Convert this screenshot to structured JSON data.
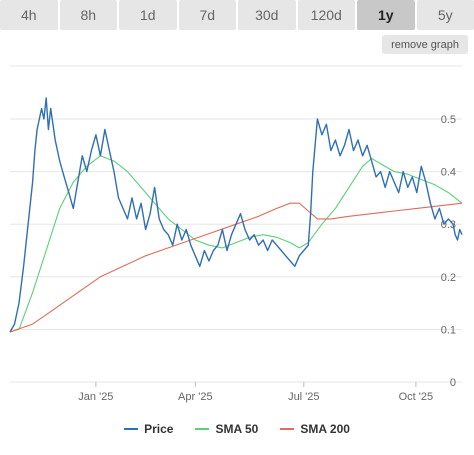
{
  "tabs": [
    {
      "label": "4h",
      "active": false
    },
    {
      "label": "8h",
      "active": false
    },
    {
      "label": "1d",
      "active": false
    },
    {
      "label": "7d",
      "active": false
    },
    {
      "label": "30d",
      "active": false
    },
    {
      "label": "120d",
      "active": false
    },
    {
      "label": "1y",
      "active": true
    },
    {
      "label": "5y",
      "active": false
    }
  ],
  "remove_graph_label": "remove graph",
  "chart_data": {
    "type": "line",
    "ylim": [
      0,
      0.5
    ],
    "y_ticks": [
      "0",
      "0.1",
      "0.2",
      "0.3",
      "0.4",
      "0.5"
    ],
    "x_ticks": [
      {
        "label": "Jan '25",
        "t": 0.19
      },
      {
        "label": "Apr '25",
        "t": 0.41
      },
      {
        "label": "Jul '25",
        "t": 0.65
      },
      {
        "label": "Oct '25",
        "t": 0.898
      }
    ],
    "grid": true,
    "legend_position": "bottom",
    "series": [
      {
        "name": "Price",
        "color": "#2f6fb5",
        "points": [
          [
            0,
            0.095
          ],
          [
            0.01,
            0.11
          ],
          [
            0.02,
            0.15
          ],
          [
            0.03,
            0.22
          ],
          [
            0.04,
            0.3
          ],
          [
            0.05,
            0.38
          ],
          [
            0.055,
            0.44
          ],
          [
            0.06,
            0.48
          ],
          [
            0.07,
            0.52
          ],
          [
            0.075,
            0.5
          ],
          [
            0.08,
            0.54
          ],
          [
            0.085,
            0.48
          ],
          [
            0.09,
            0.52
          ],
          [
            0.1,
            0.46
          ],
          [
            0.11,
            0.42
          ],
          [
            0.12,
            0.39
          ],
          [
            0.13,
            0.36
          ],
          [
            0.14,
            0.33
          ],
          [
            0.15,
            0.38
          ],
          [
            0.16,
            0.43
          ],
          [
            0.17,
            0.4
          ],
          [
            0.18,
            0.44
          ],
          [
            0.19,
            0.47
          ],
          [
            0.2,
            0.43
          ],
          [
            0.21,
            0.48
          ],
          [
            0.22,
            0.44
          ],
          [
            0.23,
            0.4
          ],
          [
            0.24,
            0.35
          ],
          [
            0.25,
            0.33
          ],
          [
            0.26,
            0.31
          ],
          [
            0.27,
            0.35
          ],
          [
            0.28,
            0.31
          ],
          [
            0.29,
            0.34
          ],
          [
            0.3,
            0.29
          ],
          [
            0.31,
            0.32
          ],
          [
            0.32,
            0.37
          ],
          [
            0.33,
            0.31
          ],
          [
            0.34,
            0.29
          ],
          [
            0.35,
            0.28
          ],
          [
            0.36,
            0.26
          ],
          [
            0.37,
            0.3
          ],
          [
            0.38,
            0.27
          ],
          [
            0.39,
            0.29
          ],
          [
            0.4,
            0.26
          ],
          [
            0.41,
            0.24
          ],
          [
            0.42,
            0.22
          ],
          [
            0.43,
            0.25
          ],
          [
            0.44,
            0.23
          ],
          [
            0.45,
            0.25
          ],
          [
            0.46,
            0.26
          ],
          [
            0.47,
            0.29
          ],
          [
            0.48,
            0.25
          ],
          [
            0.49,
            0.28
          ],
          [
            0.5,
            0.3
          ],
          [
            0.51,
            0.32
          ],
          [
            0.52,
            0.29
          ],
          [
            0.53,
            0.27
          ],
          [
            0.54,
            0.28
          ],
          [
            0.55,
            0.26
          ],
          [
            0.56,
            0.27
          ],
          [
            0.57,
            0.25
          ],
          [
            0.58,
            0.27
          ],
          [
            0.59,
            0.26
          ],
          [
            0.6,
            0.25
          ],
          [
            0.61,
            0.24
          ],
          [
            0.62,
            0.23
          ],
          [
            0.63,
            0.22
          ],
          [
            0.64,
            0.24
          ],
          [
            0.65,
            0.25
          ],
          [
            0.66,
            0.26
          ],
          [
            0.665,
            0.32
          ],
          [
            0.67,
            0.4
          ],
          [
            0.675,
            0.45
          ],
          [
            0.68,
            0.5
          ],
          [
            0.69,
            0.47
          ],
          [
            0.7,
            0.49
          ],
          [
            0.71,
            0.44
          ],
          [
            0.72,
            0.46
          ],
          [
            0.73,
            0.43
          ],
          [
            0.74,
            0.45
          ],
          [
            0.75,
            0.48
          ],
          [
            0.76,
            0.44
          ],
          [
            0.77,
            0.46
          ],
          [
            0.78,
            0.43
          ],
          [
            0.79,
            0.45
          ],
          [
            0.8,
            0.42
          ],
          [
            0.81,
            0.39
          ],
          [
            0.82,
            0.4
          ],
          [
            0.83,
            0.37
          ],
          [
            0.84,
            0.4
          ],
          [
            0.85,
            0.38
          ],
          [
            0.86,
            0.36
          ],
          [
            0.87,
            0.4
          ],
          [
            0.88,
            0.37
          ],
          [
            0.89,
            0.39
          ],
          [
            0.9,
            0.36
          ],
          [
            0.91,
            0.41
          ],
          [
            0.92,
            0.38
          ],
          [
            0.93,
            0.34
          ],
          [
            0.94,
            0.31
          ],
          [
            0.95,
            0.33
          ],
          [
            0.96,
            0.3
          ],
          [
            0.97,
            0.31
          ],
          [
            0.98,
            0.3
          ],
          [
            0.985,
            0.28
          ],
          [
            0.99,
            0.27
          ],
          [
            0.995,
            0.29
          ],
          [
            1.0,
            0.28
          ]
        ]
      },
      {
        "name": "SMA 50",
        "color": "#5ccf7a",
        "points": [
          [
            0,
            0.095
          ],
          [
            0.02,
            0.1
          ],
          [
            0.05,
            0.17
          ],
          [
            0.08,
            0.25
          ],
          [
            0.11,
            0.33
          ],
          [
            0.14,
            0.38
          ],
          [
            0.17,
            0.41
          ],
          [
            0.2,
            0.43
          ],
          [
            0.23,
            0.42
          ],
          [
            0.26,
            0.4
          ],
          [
            0.29,
            0.37
          ],
          [
            0.32,
            0.34
          ],
          [
            0.35,
            0.31
          ],
          [
            0.38,
            0.29
          ],
          [
            0.41,
            0.27
          ],
          [
            0.44,
            0.26
          ],
          [
            0.47,
            0.255
          ],
          [
            0.5,
            0.265
          ],
          [
            0.53,
            0.275
          ],
          [
            0.56,
            0.28
          ],
          [
            0.59,
            0.275
          ],
          [
            0.62,
            0.265
          ],
          [
            0.64,
            0.255
          ],
          [
            0.66,
            0.265
          ],
          [
            0.69,
            0.3
          ],
          [
            0.72,
            0.33
          ],
          [
            0.75,
            0.37
          ],
          [
            0.78,
            0.41
          ],
          [
            0.8,
            0.425
          ],
          [
            0.82,
            0.415
          ],
          [
            0.85,
            0.4
          ],
          [
            0.88,
            0.395
          ],
          [
            0.91,
            0.385
          ],
          [
            0.94,
            0.375
          ],
          [
            0.97,
            0.36
          ],
          [
            1.0,
            0.34
          ]
        ]
      },
      {
        "name": "SMA 200",
        "color": "#e26b5a",
        "points": [
          [
            0,
            0.095
          ],
          [
            0.05,
            0.11
          ],
          [
            0.1,
            0.14
          ],
          [
            0.15,
            0.17
          ],
          [
            0.2,
            0.2
          ],
          [
            0.25,
            0.22
          ],
          [
            0.3,
            0.24
          ],
          [
            0.35,
            0.255
          ],
          [
            0.4,
            0.27
          ],
          [
            0.45,
            0.285
          ],
          [
            0.5,
            0.3
          ],
          [
            0.55,
            0.315
          ],
          [
            0.59,
            0.33
          ],
          [
            0.62,
            0.34
          ],
          [
            0.64,
            0.34
          ],
          [
            0.66,
            0.325
          ],
          [
            0.68,
            0.31
          ],
          [
            0.71,
            0.31
          ],
          [
            0.75,
            0.315
          ],
          [
            0.8,
            0.32
          ],
          [
            0.85,
            0.325
          ],
          [
            0.9,
            0.33
          ],
          [
            0.95,
            0.335
          ],
          [
            1.0,
            0.34
          ]
        ]
      }
    ]
  }
}
